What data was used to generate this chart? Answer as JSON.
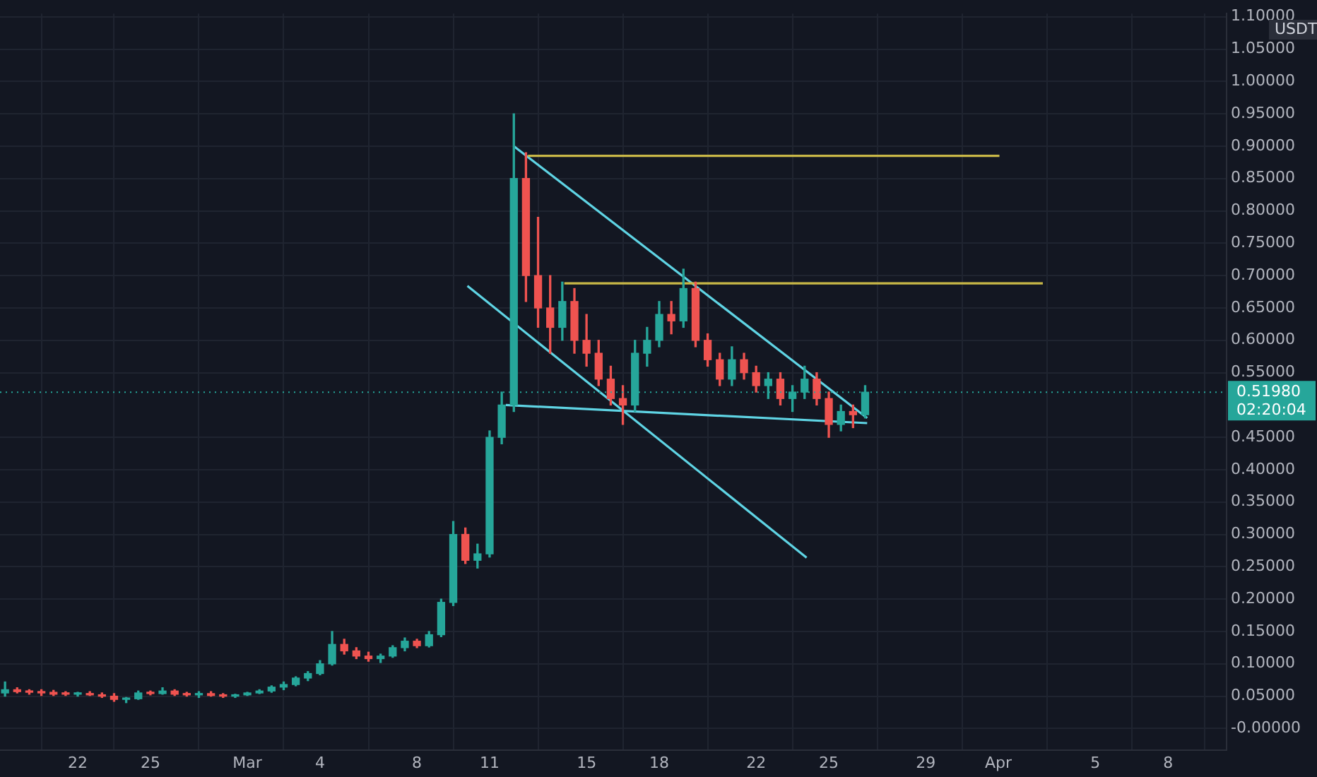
{
  "chart_data": {
    "type": "candlestick",
    "x": [
      "--02-19T00:00",
      "--02-19T12:00",
      "--02-20T00:00",
      "--02-20T12:00",
      "--02-21T00:00",
      "--02-21T12:00",
      "--02-22T00:00",
      "--02-22T12:00",
      "--02-23T00:00",
      "--02-23T12:00",
      "--02-24T00:00",
      "--02-24T12:00",
      "--02-25T00:00",
      "--02-25T12:00",
      "--02-26T00:00",
      "--02-26T12:00",
      "--02-27T00:00",
      "--02-27T12:00",
      "--02-28T00:00",
      "--02-28T12:00",
      "--03-01T00:00",
      "--03-01T12:00",
      "--03-02T00:00",
      "--03-02T12:00",
      "--03-03T00:00",
      "--03-03T12:00",
      "--03-04T00:00",
      "--03-04T12:00",
      "--03-05T00:00",
      "--03-05T12:00",
      "--03-06T00:00",
      "--03-06T12:00",
      "--03-07T00:00",
      "--03-07T12:00",
      "--03-08T00:00",
      "--03-08T12:00",
      "--03-09T00:00",
      "--03-09T12:00",
      "--03-10T00:00",
      "--03-10T12:00",
      "--03-11T00:00",
      "--03-11T12:00",
      "--03-12T00:00",
      "--03-12T12:00",
      "--03-13T00:00",
      "--03-13T12:00",
      "--03-14T00:00",
      "--03-14T12:00",
      "--03-15T00:00",
      "--03-15T12:00",
      "--03-16T00:00",
      "--03-16T12:00",
      "--03-17T00:00",
      "--03-17T12:00",
      "--03-18T00:00",
      "--03-18T12:00",
      "--03-19T00:00",
      "--03-19T12:00",
      "--03-20T00:00",
      "--03-20T12:00",
      "--03-21T00:00",
      "--03-21T12:00",
      "--03-22T00:00",
      "--03-22T12:00",
      "--03-23T00:00",
      "--03-23T12:00",
      "--03-24T00:00",
      "--03-24T12:00",
      "--03-25T00:00",
      "--03-25T12:00",
      "--03-26T00:00",
      "--03-26T12:00"
    ],
    "ohlc": [
      [
        0.055,
        0.072,
        0.05,
        0.06
      ],
      [
        0.06,
        0.063,
        0.055,
        0.057
      ],
      [
        0.057,
        0.06,
        0.053,
        0.056
      ],
      [
        0.056,
        0.06,
        0.051,
        0.055
      ],
      [
        0.056,
        0.059,
        0.051,
        0.053
      ],
      [
        0.054,
        0.057,
        0.051,
        0.053
      ],
      [
        0.053,
        0.056,
        0.05,
        0.054
      ],
      [
        0.054,
        0.057,
        0.051,
        0.052
      ],
      [
        0.052,
        0.055,
        0.048,
        0.05
      ],
      [
        0.05,
        0.054,
        0.042,
        0.045
      ],
      [
        0.045,
        0.048,
        0.04,
        0.046
      ],
      [
        0.046,
        0.058,
        0.045,
        0.055
      ],
      [
        0.055,
        0.058,
        0.052,
        0.054
      ],
      [
        0.054,
        0.063,
        0.053,
        0.058
      ],
      [
        0.058,
        0.06,
        0.051,
        0.053
      ],
      [
        0.053,
        0.056,
        0.05,
        0.052
      ],
      [
        0.052,
        0.057,
        0.048,
        0.054
      ],
      [
        0.054,
        0.057,
        0.05,
        0.051
      ],
      [
        0.051,
        0.054,
        0.048,
        0.05
      ],
      [
        0.05,
        0.053,
        0.048,
        0.052
      ],
      [
        0.052,
        0.056,
        0.051,
        0.055
      ],
      [
        0.055,
        0.06,
        0.054,
        0.058
      ],
      [
        0.058,
        0.066,
        0.056,
        0.064
      ],
      [
        0.064,
        0.072,
        0.06,
        0.068
      ],
      [
        0.068,
        0.08,
        0.066,
        0.078
      ],
      [
        0.078,
        0.088,
        0.074,
        0.085
      ],
      [
        0.085,
        0.105,
        0.083,
        0.1
      ],
      [
        0.1,
        0.15,
        0.098,
        0.13
      ],
      [
        0.13,
        0.138,
        0.115,
        0.12
      ],
      [
        0.12,
        0.125,
        0.108,
        0.112
      ],
      [
        0.112,
        0.118,
        0.104,
        0.108
      ],
      [
        0.108,
        0.115,
        0.102,
        0.112
      ],
      [
        0.112,
        0.128,
        0.11,
        0.125
      ],
      [
        0.125,
        0.14,
        0.12,
        0.135
      ],
      [
        0.135,
        0.138,
        0.125,
        0.128
      ],
      [
        0.128,
        0.15,
        0.126,
        0.145
      ],
      [
        0.145,
        0.2,
        0.142,
        0.195
      ],
      [
        0.195,
        0.32,
        0.19,
        0.3
      ],
      [
        0.3,
        0.31,
        0.255,
        0.26
      ],
      [
        0.26,
        0.285,
        0.248,
        0.27
      ],
      [
        0.27,
        0.46,
        0.265,
        0.45
      ],
      [
        0.45,
        0.52,
        0.44,
        0.5
      ],
      [
        0.5,
        0.95,
        0.49,
        0.85
      ],
      [
        0.85,
        0.89,
        0.66,
        0.7
      ],
      [
        0.7,
        0.79,
        0.62,
        0.65
      ],
      [
        0.65,
        0.7,
        0.58,
        0.62
      ],
      [
        0.62,
        0.69,
        0.6,
        0.66
      ],
      [
        0.66,
        0.68,
        0.58,
        0.6
      ],
      [
        0.6,
        0.64,
        0.56,
        0.58
      ],
      [
        0.58,
        0.6,
        0.53,
        0.54
      ],
      [
        0.54,
        0.56,
        0.5,
        0.51
      ],
      [
        0.51,
        0.53,
        0.47,
        0.5
      ],
      [
        0.5,
        0.6,
        0.49,
        0.58
      ],
      [
        0.58,
        0.62,
        0.56,
        0.6
      ],
      [
        0.6,
        0.66,
        0.59,
        0.64
      ],
      [
        0.64,
        0.66,
        0.61,
        0.63
      ],
      [
        0.63,
        0.71,
        0.62,
        0.68
      ],
      [
        0.68,
        0.69,
        0.59,
        0.6
      ],
      [
        0.6,
        0.61,
        0.56,
        0.57
      ],
      [
        0.57,
        0.58,
        0.53,
        0.54
      ],
      [
        0.54,
        0.59,
        0.53,
        0.57
      ],
      [
        0.57,
        0.58,
        0.54,
        0.55
      ],
      [
        0.55,
        0.56,
        0.52,
        0.53
      ],
      [
        0.53,
        0.55,
        0.51,
        0.54
      ],
      [
        0.54,
        0.55,
        0.5,
        0.51
      ],
      [
        0.51,
        0.53,
        0.49,
        0.52
      ],
      [
        0.52,
        0.56,
        0.51,
        0.54
      ],
      [
        0.54,
        0.55,
        0.5,
        0.51
      ],
      [
        0.51,
        0.52,
        0.45,
        0.47
      ],
      [
        0.47,
        0.5,
        0.46,
        0.49
      ],
      [
        0.49,
        0.5,
        0.465,
        0.485
      ],
      [
        0.485,
        0.53,
        0.48,
        0.5198
      ]
    ],
    "series": [
      {
        "type": "line",
        "color": "#c9b847",
        "x": [
          "--03-12T14:00",
          "--04-01T01:00"
        ],
        "values": [
          0.885,
          0.885
        ]
      },
      {
        "type": "line",
        "color": "#c9b847",
        "x": [
          "--03-14T02:00",
          "--04-02T20:00"
        ],
        "values": [
          0.688,
          0.688
        ]
      },
      {
        "type": "line",
        "color": "#5fd4e4",
        "x": [
          "--03-12T00:00",
          "--03-26T14:00"
        ],
        "values": [
          0.9,
          0.48
        ]
      },
      {
        "type": "line",
        "color": "#5fd4e4",
        "x": [
          "--03-10T02:00",
          "--03-24T02:00"
        ],
        "values": [
          0.684,
          0.264
        ]
      },
      {
        "type": "line",
        "color": "#5fd4e4",
        "x": [
          "--03-11T16:00",
          "--03-26T14:00"
        ],
        "values": [
          0.5,
          0.472
        ]
      }
    ],
    "xlim": [
      "--02-18T19:00",
      "--04-10T10:00"
    ],
    "xticks": [
      {
        "value": "--02-22",
        "label": "22"
      },
      {
        "value": "--02-25",
        "label": "25"
      },
      {
        "value": "--03-01",
        "label": "Mar"
      },
      {
        "value": "--03-04",
        "label": "4"
      },
      {
        "value": "--03-08",
        "label": "8"
      },
      {
        "value": "--03-11",
        "label": "11"
      },
      {
        "value": "--03-15",
        "label": "15"
      },
      {
        "value": "--03-18",
        "label": "18"
      },
      {
        "value": "--03-22",
        "label": "22"
      },
      {
        "value": "--03-25",
        "label": "25"
      },
      {
        "value": "--03-29",
        "label": "29"
      },
      {
        "value": "--04-01",
        "label": "Apr"
      },
      {
        "value": "--04-05",
        "label": "5"
      },
      {
        "value": "--04-08",
        "label": "8"
      }
    ],
    "ylim": [
      -0.033,
      1.105
    ],
    "yticks": [
      {
        "value": 0,
        "label": "-0.00000"
      },
      {
        "value": 0.05,
        "label": "0.05000"
      },
      {
        "value": 0.1,
        "label": "0.10000"
      },
      {
        "value": 0.15,
        "label": "0.15000"
      },
      {
        "value": 0.2,
        "label": "0.20000"
      },
      {
        "value": 0.25,
        "label": "0.25000"
      },
      {
        "value": 0.3,
        "label": "0.30000"
      },
      {
        "value": 0.35,
        "label": "0.35000"
      },
      {
        "value": 0.4,
        "label": "0.40000"
      },
      {
        "value": 0.45,
        "label": "0.45000"
      },
      {
        "value": 0.55,
        "label": "0.55000"
      },
      {
        "value": 0.6,
        "label": "0.60000"
      },
      {
        "value": 0.65,
        "label": "0.65000"
      },
      {
        "value": 0.7,
        "label": "0.70000"
      },
      {
        "value": 0.75,
        "label": "0.75000"
      },
      {
        "value": 0.8,
        "label": "0.80000"
      },
      {
        "value": 0.85,
        "label": "0.85000"
      },
      {
        "value": 0.9,
        "label": "0.90000"
      },
      {
        "value": 0.95,
        "label": "0.95000"
      },
      {
        "value": 1,
        "label": "1.00000"
      },
      {
        "value": 1.05,
        "label": "1.05000"
      },
      {
        "value": 1.1,
        "label": "1.10000"
      }
    ],
    "ref_lines": [
      {
        "axis": "y",
        "value": 0.5198,
        "label": "0.51980",
        "color": "#26a69a",
        "line_style": "dotted"
      }
    ],
    "annotations": [
      "USDT",
      "02:20:04"
    ],
    "grid": true,
    "legend": false
  }
}
